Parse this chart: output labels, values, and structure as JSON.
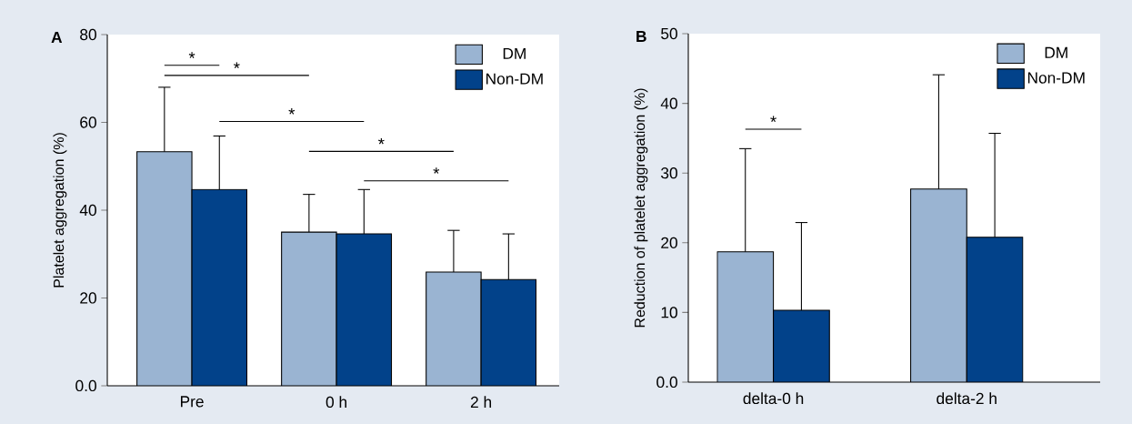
{
  "chart_data": [
    {
      "type": "bar",
      "title": "A",
      "ylabel": "Platelet aggregation (%)",
      "categories": [
        "Pre",
        "0 h",
        "2 h"
      ],
      "series": [
        {
          "name": "DM",
          "color": "#9ab4d2",
          "values": [
            53.3,
            35.0,
            25.9
          ],
          "errors": [
            14.7,
            8.6,
            9.5
          ]
        },
        {
          "name": "Non-DM",
          "color": "#02428a",
          "values": [
            44.7,
            34.6,
            24.2
          ],
          "errors": [
            12.2,
            10.1,
            10.4
          ]
        }
      ],
      "ylim": [
        0,
        80
      ],
      "yticks": [
        {
          "value": 0,
          "label": "0.0"
        },
        20,
        40,
        60,
        80
      ],
      "legend": "top right",
      "grid": false,
      "annotations": [
        "*",
        "*",
        "*",
        "*",
        "*"
      ]
    },
    {
      "type": "bar",
      "title": "B",
      "ylabel": "Reduction of platelet aggregation (%)",
      "categories": [
        "delta-0 h",
        "delta-2 h"
      ],
      "series": [
        {
          "name": "DM",
          "color": "#9ab4d2",
          "values": [
            18.7,
            27.7
          ],
          "errors": [
            14.8,
            16.4
          ]
        },
        {
          "name": "Non-DM",
          "color": "#02428a",
          "values": [
            10.3,
            20.8
          ],
          "errors": [
            12.6,
            14.9
          ]
        }
      ],
      "ylim": [
        0,
        50
      ],
      "yticks": [
        {
          "value": 0,
          "label": "0.0"
        },
        10,
        20,
        30,
        40,
        50
      ],
      "legend": "top right",
      "grid": false,
      "annotations": [
        "*"
      ]
    }
  ]
}
